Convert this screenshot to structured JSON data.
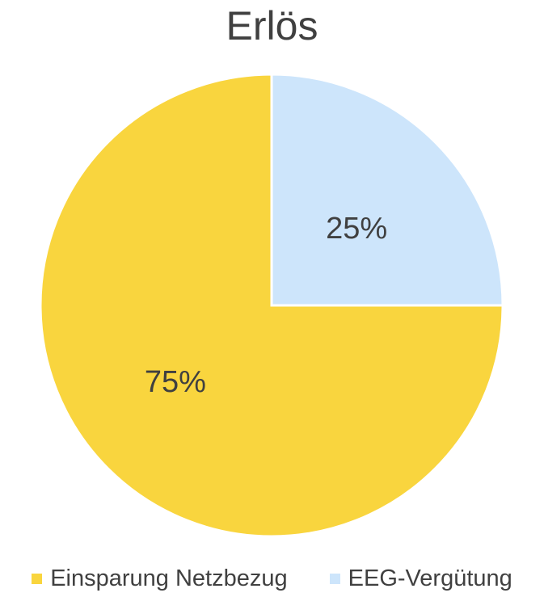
{
  "chart_data": {
    "type": "pie",
    "title": "Erlös",
    "categories": [
      "Einsparung Netzbezug",
      "EEG-Vergütung"
    ],
    "values": [
      75,
      25
    ],
    "data_labels": [
      "75%",
      "25%"
    ],
    "colors": [
      "#F9D53E",
      "#CDE5FB"
    ],
    "start_angle_deg": 0,
    "direction": "counterclockwise",
    "legend_position": "bottom"
  }
}
